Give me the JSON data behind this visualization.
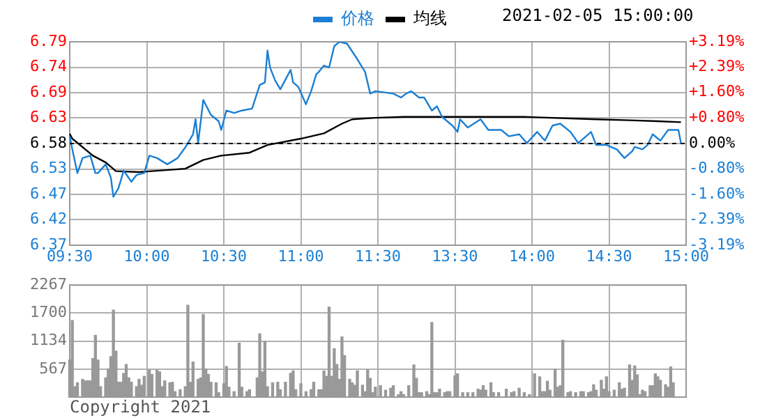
{
  "chart_data": [
    {
      "type": "line",
      "subtitle": "2021-02-05 15:00:00",
      "legend": "top",
      "grid": true,
      "marker": "none",
      "categories": [
        "09:30",
        null,
        null,
        null,
        null,
        null,
        null,
        null,
        null,
        null,
        null,
        null,
        null,
        null,
        null,
        null,
        null,
        null,
        null,
        null,
        null,
        null,
        null,
        null,
        null,
        null,
        null,
        null,
        null,
        null,
        "10:00",
        null,
        null,
        null,
        null,
        null,
        null,
        null,
        null,
        null,
        null,
        null,
        null,
        null,
        null,
        null,
        null,
        null,
        null,
        null,
        null,
        null,
        null,
        null,
        null,
        null,
        null,
        null,
        null,
        null,
        "10:30",
        null,
        null,
        null,
        null,
        null,
        null,
        null,
        null,
        null,
        null,
        null,
        null,
        null,
        null,
        null,
        null,
        null,
        null,
        null,
        null,
        null,
        null,
        null,
        null,
        null,
        null,
        null,
        null,
        null,
        "11:00",
        null,
        null,
        null,
        null,
        null,
        null,
        null,
        null,
        null,
        null,
        null,
        null,
        null,
        null,
        null,
        null,
        null,
        null,
        null,
        null,
        null,
        null,
        null,
        null,
        null,
        null,
        null,
        null,
        null,
        "11:30",
        null,
        null,
        null,
        null,
        null,
        null,
        null,
        null,
        null,
        null,
        null,
        null,
        null,
        null,
        null,
        null,
        null,
        null,
        null,
        null,
        null,
        null,
        null,
        null,
        null,
        null,
        null,
        null,
        null,
        "13:30",
        null,
        null,
        null,
        null,
        null,
        null,
        null,
        null,
        null,
        null,
        null,
        null,
        null,
        null,
        null,
        null,
        null,
        null,
        null,
        null,
        null,
        null,
        null,
        null,
        null,
        null,
        null,
        null,
        null,
        "14:00",
        null,
        null,
        null,
        null,
        null,
        null,
        null,
        null,
        null,
        null,
        null,
        null,
        null,
        null,
        null,
        null,
        null,
        null,
        null,
        null,
        null,
        null,
        null,
        null,
        null,
        null,
        null,
        null,
        null,
        "14:30",
        null,
        null,
        null,
        null,
        null,
        null,
        null,
        null,
        null,
        null,
        null,
        null,
        null,
        null,
        null,
        null,
        null,
        null,
        null,
        null,
        null,
        null,
        null,
        null,
        null,
        null,
        null,
        null,
        null,
        "15:00"
      ],
      "ylim": [
        6.37,
        6.79
      ],
      "yticks": [
        {
          "value": 6.37,
          "label": "6.37"
        },
        {
          "value": 6.4225,
          "label": "6.42"
        },
        {
          "value": 6.475,
          "label": "6.47"
        },
        {
          "value": 6.5275,
          "label": "6.53"
        },
        {
          "value": 6.58,
          "label": "6.58"
        },
        {
          "value": 6.6325,
          "label": "6.63"
        },
        {
          "value": 6.685,
          "label": "6.69"
        },
        {
          "value": 6.7375,
          "label": "6.74"
        },
        {
          "value": 6.79,
          "label": "6.79"
        }
      ],
      "y2lim": [
        -3.19,
        3.19
      ],
      "y2ticks": [
        {
          "value": -3.19,
          "label": "-3.19%"
        },
        {
          "value": -2.39,
          "label": "-2.39%"
        },
        {
          "value": -1.6,
          "label": "-1.60%"
        },
        {
          "value": -0.8,
          "label": "-0.80%"
        },
        {
          "value": 0,
          "label": "0.00%"
        },
        {
          "value": 0.8,
          "label": "+0.80%"
        },
        {
          "value": 1.6,
          "label": "+1.60%"
        },
        {
          "value": 2.39,
          "label": "+2.39%"
        },
        {
          "value": 3.19,
          "label": "+3.19%"
        }
      ],
      "ref_lines": [
        {
          "axis": "y",
          "value": 6.58,
          "color": "#000000",
          "line_style": "dashed"
        }
      ],
      "series": [
        {
          "name": "价格",
          "color": "#1a7fd4",
          "values": [
            6.595,
            6.568,
            null,
            6.519,
            null,
            6.55,
            null,
            null,
            6.555,
            null,
            6.519,
            6.519,
            null,
            null,
            6.537,
            null,
            6.51,
            6.47,
            null,
            6.488,
            null,
            6.524,
            null,
            null,
            6.501,
            null,
            6.515,
            null,
            null,
            6.519,
            null,
            6.555,
            null,
            null,
            6.55,
            null,
            null,
            null,
            6.537,
            null,
            null,
            null,
            6.55,
            null,
            null,
            6.572,
            null,
            null,
            6.599,
            6.63,
            6.581,
            null,
            6.67,
            null,
            null,
            6.639,
            null,
            null,
            6.626,
            6.608,
            null,
            6.648,
            null,
            null,
            6.643,
            null,
            null,
            6.648,
            null,
            null,
            null,
            6.652,
            null,
            null,
            6.701,
            null,
            6.706,
            6.772,
            6.737,
            null,
            6.71,
            null,
            6.692,
            null,
            null,
            null,
            6.732,
            6.706,
            null,
            6.697,
            null,
            null,
            6.661,
            null,
            6.688,
            null,
            6.723,
            6.728,
            null,
            6.741,
            null,
            6.737,
            null,
            6.781,
            null,
            6.79,
            null,
            null,
            6.786,
            null,
            null,
            null,
            6.754,
            null,
            null,
            6.728,
            null,
            6.683,
            null,
            6.688,
            null,
            null,
            null,
            null,
            null,
            null,
            6.683,
            null,
            null,
            6.675,
            null,
            6.683,
            null,
            6.688,
            null,
            null,
            6.675,
            null,
            6.675,
            null,
            null,
            6.648,
            null,
            6.657,
            null,
            6.635,
            null,
            null,
            null,
            6.617,
            null,
            6.604,
            6.63,
            null,
            null,
            6.613,
            null,
            null,
            null,
            null,
            6.63,
            null,
            null,
            6.608,
            null,
            null,
            null,
            null,
            6.608,
            null,
            null,
            6.595,
            null,
            null,
            null,
            6.599,
            null,
            null,
            6.581,
            null,
            null,
            null,
            6.604,
            null,
            null,
            6.586,
            null,
            null,
            6.617,
            null,
            null,
            6.621,
            null,
            null,
            null,
            6.604,
            null,
            null,
            6.581,
            null,
            null,
            null,
            null,
            6.604,
            null,
            6.577,
            null,
            null,
            null,
            6.577,
            null,
            null,
            null,
            6.568,
            null,
            null,
            6.55,
            null,
            null,
            6.564,
            6.573,
            null,
            null,
            6.568,
            null,
            6.577,
            null,
            6.599,
            null,
            null,
            6.586,
            null,
            null,
            6.608,
            null,
            null,
            null,
            6.608,
            6.581,
            null,
            null
          ]
        },
        {
          "name": "均线",
          "color": "#000000",
          "values": [
            6.6,
            6.59,
            null,
            null,
            null,
            null,
            null,
            null,
            null,
            6.555,
            null,
            null,
            null,
            null,
            6.541,
            null,
            null,
            null,
            6.523,
            null,
            null,
            null,
            null,
            null,
            null,
            null,
            null,
            6.521,
            null,
            null,
            null,
            null,
            6.523,
            null,
            null,
            null,
            null,
            null,
            null,
            null,
            null,
            null,
            null,
            null,
            null,
            6.528,
            null,
            null,
            null,
            null,
            null,
            null,
            6.546,
            null,
            null,
            null,
            null,
            null,
            null,
            6.555,
            null,
            null,
            null,
            null,
            null,
            null,
            null,
            null,
            null,
            null,
            6.561,
            null,
            null,
            null,
            null,
            null,
            null,
            6.577,
            null,
            null,
            null,
            null,
            null,
            null,
            null,
            null,
            null,
            null,
            null,
            null,
            6.59,
            null,
            null,
            null,
            null,
            null,
            null,
            null,
            null,
            6.601,
            null,
            null,
            null,
            null,
            null,
            null,
            6.621,
            null,
            null,
            null,
            6.63,
            null,
            null,
            null,
            null,
            null,
            null,
            null,
            null,
            6.633,
            null,
            null,
            null,
            null,
            null,
            null,
            null,
            null,
            null,
            null,
            6.635,
            null,
            null,
            null,
            null,
            null,
            null,
            null,
            null,
            null,
            null,
            null,
            null,
            null,
            null,
            null,
            null,
            null,
            null,
            null,
            null,
            null,
            null,
            null,
            null,
            null,
            null,
            null,
            null,
            null,
            null,
            null,
            null,
            null,
            null,
            null,
            null,
            null,
            null,
            null,
            null,
            null,
            null,
            null,
            null,
            null,
            null,
            6.635,
            null,
            null,
            null,
            null,
            null,
            null,
            null,
            null,
            null,
            null,
            null,
            null,
            null,
            null,
            null,
            null,
            null,
            null,
            null,
            null,
            null,
            null,
            null,
            null,
            null,
            null,
            null,
            6.63,
            null,
            null,
            null,
            null,
            null,
            null,
            null,
            null,
            null,
            null,
            null,
            null,
            6.628,
            null,
            null,
            null,
            null,
            null,
            null,
            null,
            null,
            null,
            null,
            6.626,
            null,
            null,
            null,
            null,
            null,
            null,
            null,
            null,
            6.624,
            null,
            null
          ]
        }
      ]
    },
    {
      "type": "bar",
      "grid": true,
      "tick_labels": "y",
      "annotations": [
        "Copyright 2021"
      ],
      "categories": [
        null,
        null,
        null,
        null,
        null,
        null,
        null,
        null,
        null,
        null,
        null,
        null,
        null,
        null,
        null,
        null,
        null,
        null,
        null,
        null,
        null,
        null,
        null,
        null,
        null,
        null,
        null,
        null,
        null,
        null,
        null,
        null,
        null,
        null,
        null,
        null,
        null,
        null,
        null,
        null,
        null,
        null,
        null,
        null,
        null,
        null,
        null,
        null,
        null,
        null,
        null,
        null,
        null,
        null,
        null,
        null,
        null,
        null,
        null,
        null,
        null,
        null,
        null,
        null,
        null,
        null,
        null,
        null,
        null,
        null,
        null,
        null,
        null,
        null,
        null,
        null,
        null,
        null,
        null,
        null,
        null,
        null,
        null,
        null,
        null,
        null,
        null,
        null,
        null,
        null,
        null,
        null,
        null,
        null,
        null,
        null,
        null,
        null,
        null,
        null,
        null,
        null,
        null,
        null,
        null,
        null,
        null,
        null,
        null,
        null,
        null,
        null,
        null,
        null,
        null,
        null,
        null,
        null,
        null,
        null,
        null,
        null,
        null,
        null,
        null,
        null,
        null,
        null,
        null,
        null,
        null,
        null,
        null,
        null,
        null,
        null,
        null,
        null,
        null,
        null,
        null,
        null,
        null,
        null,
        null,
        null,
        null,
        null,
        null,
        null,
        null,
        null,
        null,
        null,
        null,
        null,
        null,
        null,
        null,
        null,
        null,
        null,
        null,
        null,
        null,
        null,
        null,
        null,
        null,
        null,
        null,
        null,
        null,
        null,
        null,
        null,
        null,
        null,
        null,
        null,
        null,
        null,
        null,
        null,
        null,
        null,
        null,
        null,
        null,
        null,
        null,
        null,
        null,
        null,
        null,
        null,
        null,
        null,
        null,
        null,
        null,
        null,
        null,
        null,
        null,
        null,
        null,
        null,
        null,
        null,
        null,
        null,
        null,
        null,
        null,
        null,
        null,
        null,
        null,
        null,
        null,
        null,
        null,
        null,
        null,
        null,
        null,
        null,
        null,
        null,
        null,
        null,
        null,
        null,
        null,
        null,
        null,
        null,
        null,
        null,
        null
      ],
      "ylim": [
        0,
        2267
      ],
      "yticks": [
        567,
        1134,
        1700,
        2267
      ],
      "series": [
        {
          "color": "#999999",
          "values": [
            750,
            1550,
            210,
            290,
            null,
            360,
            330,
            330,
            330,
            780,
            1250,
            750,
            210,
            null,
            390,
            570,
            820,
            1760,
            930,
            300,
            300,
            480,
            660,
            390,
            300,
            null,
            210,
            360,
            240,
            420,
            null,
            550,
            460,
            null,
            550,
            510,
            210,
            330,
            null,
            290,
            300,
            110,
            null,
            150,
            null,
            210,
            1860,
            300,
            710,
            null,
            360,
            390,
            1670,
            570,
            460,
            300,
            null,
            290,
            90,
            null,
            270,
            620,
            200,
            null,
            110,
            null,
            1090,
            200,
            null,
            110,
            150,
            null,
            null,
            390,
            1280,
            510,
            1130,
            210,
            null,
            290,
            null,
            300,
            150,
            null,
            300,
            null,
            480,
            530,
            150,
            null,
            270,
            null,
            110,
            null,
            150,
            300,
            null,
            150,
            150,
            530,
            420,
            1820,
            420,
            980,
            660,
            360,
            1220,
            840,
            null,
            360,
            290,
            240,
            530,
            null,
            240,
            110,
            550,
            380,
            90,
            200,
            null,
            230,
            null,
            140,
            null,
            180,
            230,
            null,
            50,
            110,
            50,
            null,
            230,
            null,
            650,
            380,
            90,
            90,
            null,
            110,
            50,
            1510,
            90,
            90,
            160,
            null,
            90,
            110,
            110,
            null,
            430,
            470,
            null,
            90,
            null,
            90,
            null,
            90,
            null,
            160,
            140,
            230,
            140,
            null,
            290,
            90,
            null,
            90,
            null,
            null,
            160,
            null,
            90,
            110,
            null,
            180,
            null,
            90,
            null,
            50,
            null,
            470,
            null,
            410,
            110,
            110,
            320,
            140,
            null,
            560,
            200,
            230,
            1150,
            null,
            90,
            110,
            null,
            90,
            null,
            110,
            110,
            null,
            90,
            110,
            250,
            140,
            null,
            340,
            160,
            410,
            110,
            null,
            140,
            null,
            290,
            160,
            180,
            null,
            650,
            340,
            630,
            450,
            50,
            140,
            110,
            null,
            230,
            230,
            470,
            410,
            340,
            null,
            250,
            200,
            610,
            290,
            null,
            null,
            null,
            null,
            null
          ]
        }
      ]
    }
  ]
}
